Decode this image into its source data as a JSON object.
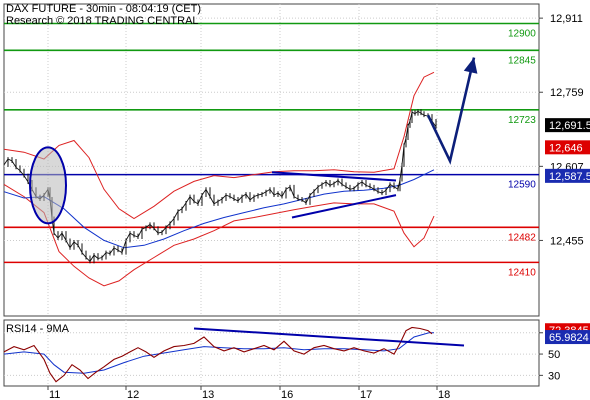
{
  "header": {
    "title": "DAX FUTURE - 30min - 08:04:19 (CET)",
    "research": "Research © 2018 TRADING CENTRAL"
  },
  "rsi_panel": {
    "label": "RSI14 - 9MA"
  },
  "colors": {
    "resistance": "#119911",
    "pivot": "#0000aa",
    "support": "#dd0000",
    "bollinger": "#dd2222",
    "price": "#111111",
    "ma": "#1133cc",
    "arrow": "#0c1f7a",
    "rsi": "#8b0000",
    "rsi_ma": "#1133cc",
    "badge_dark": "#000000",
    "badge_red": "#dd0000",
    "badge_blue": "#1a2bb0"
  },
  "chart_data": [
    {
      "type": "line",
      "panel": "price",
      "x_tick_labels": [
        "11",
        "12",
        "13",
        "16",
        "17",
        "18"
      ],
      "y_axis_labels": [
        "12,911",
        "12,759",
        "12,607",
        "12,455"
      ],
      "y_axis_values": [
        12911,
        12759,
        12607,
        12455
      ],
      "ylim": [
        12300,
        12940
      ],
      "levels": [
        {
          "value": 12900,
          "label": "12900",
          "role": "resistance"
        },
        {
          "value": 12845,
          "label": "12845",
          "role": "resistance"
        },
        {
          "value": 12723,
          "label": "12723",
          "role": "resistance"
        },
        {
          "value": 12590,
          "label": "12590",
          "role": "pivot"
        },
        {
          "value": 12482,
          "label": "12482",
          "role": "support"
        },
        {
          "value": 12410,
          "label": "12410",
          "role": "support"
        }
      ],
      "badges": [
        {
          "value": 12691.5,
          "label": "12,691.5",
          "style": "dark"
        },
        {
          "value": 12646,
          "label": "12,646",
          "style": "red"
        },
        {
          "value": 12587.5,
          "label": "12,587.5",
          "style": "blue"
        }
      ],
      "price_path": [
        [
          0,
          12610
        ],
        [
          4,
          12622
        ],
        [
          8,
          12618
        ],
        [
          12,
          12605
        ],
        [
          16,
          12598
        ],
        [
          20,
          12588
        ],
        [
          24,
          12575
        ],
        [
          28,
          12560
        ],
        [
          32,
          12545
        ],
        [
          36,
          12540
        ],
        [
          40,
          12548
        ],
        [
          44,
          12560
        ],
        [
          46,
          12540
        ],
        [
          48,
          12500
        ],
        [
          50,
          12470
        ],
        [
          54,
          12460
        ],
        [
          58,
          12470
        ],
        [
          62,
          12455
        ],
        [
          66,
          12440
        ],
        [
          70,
          12452
        ],
        [
          74,
          12445
        ],
        [
          78,
          12430
        ],
        [
          82,
          12420
        ],
        [
          86,
          12412
        ],
        [
          90,
          12425
        ],
        [
          94,
          12418
        ],
        [
          98,
          12420
        ],
        [
          102,
          12430
        ],
        [
          106,
          12428
        ],
        [
          110,
          12440
        ],
        [
          114,
          12435
        ],
        [
          118,
          12430
        ],
        [
          122,
          12455
        ],
        [
          126,
          12470
        ],
        [
          130,
          12465
        ],
        [
          134,
          12462
        ],
        [
          138,
          12478
        ],
        [
          142,
          12482
        ],
        [
          146,
          12488
        ],
        [
          150,
          12480
        ],
        [
          154,
          12470
        ],
        [
          158,
          12472
        ],
        [
          162,
          12482
        ],
        [
          166,
          12490
        ],
        [
          170,
          12500
        ],
        [
          174,
          12515
        ],
        [
          178,
          12520
        ],
        [
          182,
          12532
        ],
        [
          186,
          12545
        ],
        [
          190,
          12535
        ],
        [
          194,
          12530
        ],
        [
          198,
          12548
        ],
        [
          202,
          12560
        ],
        [
          206,
          12545
        ],
        [
          210,
          12530
        ],
        [
          214,
          12535
        ],
        [
          218,
          12540
        ],
        [
          222,
          12548
        ],
        [
          226,
          12545
        ],
        [
          230,
          12540
        ],
        [
          234,
          12536
        ],
        [
          238,
          12545
        ],
        [
          242,
          12550
        ],
        [
          246,
          12538
        ],
        [
          250,
          12545
        ],
        [
          254,
          12548
        ],
        [
          258,
          12550
        ],
        [
          262,
          12555
        ],
        [
          266,
          12560
        ],
        [
          270,
          12548
        ],
        [
          274,
          12552
        ],
        [
          278,
          12545
        ],
        [
          282,
          12560
        ],
        [
          286,
          12565
        ],
        [
          290,
          12545
        ],
        [
          294,
          12540
        ],
        [
          298,
          12538
        ],
        [
          302,
          12532
        ],
        [
          306,
          12548
        ],
        [
          310,
          12556
        ],
        [
          314,
          12565
        ],
        [
          318,
          12570
        ],
        [
          322,
          12575
        ],
        [
          326,
          12568
        ],
        [
          330,
          12572
        ],
        [
          334,
          12578
        ],
        [
          338,
          12570
        ],
        [
          342,
          12565
        ],
        [
          346,
          12560
        ],
        [
          350,
          12562
        ],
        [
          354,
          12570
        ],
        [
          358,
          12575
        ],
        [
          362,
          12568
        ],
        [
          366,
          12565
        ],
        [
          370,
          12560
        ],
        [
          374,
          12555
        ],
        [
          378,
          12552
        ],
        [
          382,
          12558
        ],
        [
          386,
          12570
        ],
        [
          390,
          12565
        ],
        [
          394,
          12560
        ],
        [
          396,
          12580
        ],
        [
          398,
          12610
        ],
        [
          400,
          12650
        ],
        [
          402,
          12665
        ],
        [
          404,
          12690
        ],
        [
          406,
          12700
        ],
        [
          408,
          12718
        ],
        [
          411,
          12715
        ],
        [
          414,
          12720
        ],
        [
          417,
          12716
        ],
        [
          420,
          12712
        ],
        [
          424,
          12710
        ],
        [
          428,
          12700
        ],
        [
          432,
          12688
        ]
      ],
      "bollinger_upper": [
        [
          0,
          12642
        ],
        [
          20,
          12636
        ],
        [
          40,
          12622
        ],
        [
          55,
          12650
        ],
        [
          70,
          12660
        ],
        [
          85,
          12625
        ],
        [
          100,
          12560
        ],
        [
          115,
          12520
        ],
        [
          130,
          12500
        ],
        [
          150,
          12525
        ],
        [
          170,
          12556
        ],
        [
          190,
          12576
        ],
        [
          210,
          12588
        ],
        [
          230,
          12584
        ],
        [
          250,
          12590
        ],
        [
          270,
          12596
        ],
        [
          290,
          12598
        ],
        [
          310,
          12598
        ],
        [
          330,
          12600
        ],
        [
          350,
          12596
        ],
        [
          370,
          12595
        ],
        [
          390,
          12602
        ],
        [
          400,
          12668
        ],
        [
          410,
          12752
        ],
        [
          420,
          12790
        ],
        [
          430,
          12800
        ]
      ],
      "bollinger_lower": [
        [
          0,
          12570
        ],
        [
          20,
          12545
        ],
        [
          40,
          12512
        ],
        [
          55,
          12432
        ],
        [
          70,
          12402
        ],
        [
          85,
          12378
        ],
        [
          100,
          12362
        ],
        [
          115,
          12372
        ],
        [
          130,
          12395
        ],
        [
          150,
          12420
        ],
        [
          170,
          12445
        ],
        [
          190,
          12458
        ],
        [
          210,
          12475
        ],
        [
          230,
          12495
        ],
        [
          250,
          12502
        ],
        [
          270,
          12510
        ],
        [
          290,
          12518
        ],
        [
          310,
          12525
        ],
        [
          330,
          12532
        ],
        [
          350,
          12530
        ],
        [
          370,
          12530
        ],
        [
          390,
          12515
        ],
        [
          400,
          12470
        ],
        [
          410,
          12442
        ],
        [
          420,
          12460
        ],
        [
          430,
          12505
        ]
      ],
      "moving_average": [
        [
          0,
          12555
        ],
        [
          20,
          12542
        ],
        [
          40,
          12545
        ],
        [
          60,
          12520
        ],
        [
          80,
          12482
        ],
        [
          100,
          12455
        ],
        [
          120,
          12440
        ],
        [
          140,
          12445
        ],
        [
          160,
          12458
        ],
        [
          180,
          12475
        ],
        [
          200,
          12490
        ],
        [
          220,
          12502
        ],
        [
          240,
          12512
        ],
        [
          260,
          12522
        ],
        [
          280,
          12530
        ],
        [
          300,
          12540
        ],
        [
          320,
          12550
        ],
        [
          340,
          12556
        ],
        [
          360,
          12558
        ],
        [
          380,
          12562
        ],
        [
          395,
          12568
        ],
        [
          410,
          12580
        ],
        [
          430,
          12600
        ]
      ],
      "forecast_arrow": [
        [
          424,
          12712
        ],
        [
          446,
          12618
        ],
        [
          470,
          12830
        ]
      ],
      "triangle_upper": [
        [
          268,
          12595
        ],
        [
          392,
          12578
        ]
      ],
      "triangle_lower": [
        [
          288,
          12502
        ],
        [
          392,
          12548
        ]
      ],
      "highlight_ellipse": {
        "x": 44,
        "y": 12568,
        "rx": 18,
        "ry": 38
      }
    },
    {
      "type": "line",
      "panel": "rsi",
      "title": "RSI14 - 9MA",
      "y_axis_labels": [
        "70",
        "50",
        "30"
      ],
      "y_axis_values": [
        70,
        50,
        30
      ],
      "ylim": [
        20,
        82
      ],
      "badges": [
        {
          "value": 72.3845,
          "label": "72.3845",
          "style": "red"
        },
        {
          "value": 65.9824,
          "label": "65.9824",
          "style": "blue"
        }
      ],
      "rsi": [
        [
          0,
          52
        ],
        [
          10,
          57
        ],
        [
          20,
          54
        ],
        [
          30,
          58
        ],
        [
          40,
          45
        ],
        [
          46,
          32
        ],
        [
          52,
          24
        ],
        [
          60,
          30
        ],
        [
          68,
          40
        ],
        [
          76,
          35
        ],
        [
          84,
          27
        ],
        [
          92,
          33
        ],
        [
          100,
          38
        ],
        [
          110,
          45
        ],
        [
          118,
          48
        ],
        [
          126,
          52
        ],
        [
          134,
          56
        ],
        [
          142,
          52
        ],
        [
          150,
          47
        ],
        [
          160,
          53
        ],
        [
          170,
          57
        ],
        [
          180,
          58
        ],
        [
          190,
          60
        ],
        [
          200,
          66
        ],
        [
          210,
          57
        ],
        [
          220,
          53
        ],
        [
          230,
          56
        ],
        [
          240,
          52
        ],
        [
          250,
          55
        ],
        [
          260,
          58
        ],
        [
          270,
          54
        ],
        [
          280,
          62
        ],
        [
          290,
          53
        ],
        [
          300,
          50
        ],
        [
          310,
          56
        ],
        [
          320,
          58
        ],
        [
          330,
          55
        ],
        [
          340,
          53
        ],
        [
          350,
          56
        ],
        [
          360,
          53
        ],
        [
          370,
          51
        ],
        [
          380,
          55
        ],
        [
          390,
          50
        ],
        [
          396,
          60
        ],
        [
          402,
          72
        ],
        [
          408,
          75
        ],
        [
          416,
          74
        ],
        [
          424,
          72
        ],
        [
          428,
          69
        ]
      ],
      "rsi_ma": [
        [
          0,
          50
        ],
        [
          20,
          52
        ],
        [
          40,
          50
        ],
        [
          50,
          40
        ],
        [
          60,
          33
        ],
        [
          80,
          32
        ],
        [
          100,
          35
        ],
        [
          120,
          42
        ],
        [
          140,
          48
        ],
        [
          160,
          51
        ],
        [
          180,
          54
        ],
        [
          200,
          57
        ],
        [
          220,
          56
        ],
        [
          240,
          55
        ],
        [
          260,
          55
        ],
        [
          280,
          56
        ],
        [
          300,
          54
        ],
        [
          320,
          55
        ],
        [
          340,
          55
        ],
        [
          360,
          54
        ],
        [
          380,
          53
        ],
        [
          395,
          55
        ],
        [
          410,
          66
        ],
        [
          425,
          70
        ],
        [
          430,
          70
        ]
      ],
      "trendline": [
        [
          190,
          74
        ],
        [
          460,
          58
        ]
      ]
    }
  ]
}
